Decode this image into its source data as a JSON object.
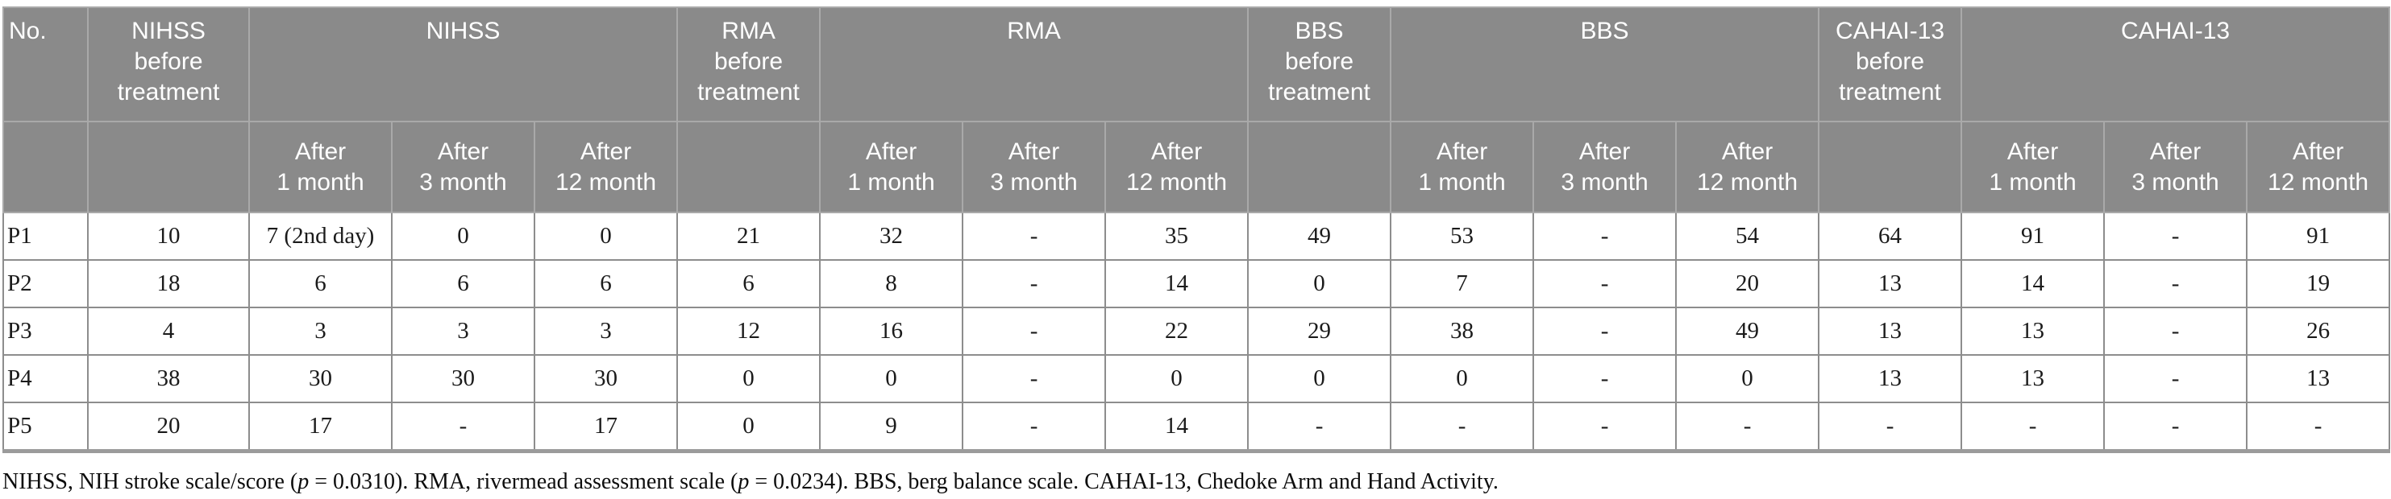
{
  "colors": {
    "header_background": "#8a8a8a",
    "header_gridlines": "#a9a9a9",
    "header_text": "#ffffff",
    "body_border": "#8d8d8d",
    "body_text": "#1b1b1b",
    "bottom_rule": "#9b9b9b"
  },
  "table": {
    "header_row1": [
      {
        "key": "no",
        "label": "No.",
        "colspan": 1
      },
      {
        "key": "nihss-before-treatment",
        "label": "NIHSS\nbefore\ntreatment",
        "colspan": 1
      },
      {
        "key": "nihss-group",
        "label": "NIHSS",
        "colspan": 3
      },
      {
        "key": "rma-before-treatment",
        "label": "RMA\nbefore\ntreatment",
        "colspan": 1
      },
      {
        "key": "rma-group",
        "label": "RMA",
        "colspan": 3
      },
      {
        "key": "bbs-before-treatment",
        "label": "BBS\nbefore\ntreatment",
        "colspan": 1
      },
      {
        "key": "bbs-group",
        "label": "BBS",
        "colspan": 3
      },
      {
        "key": "cahai-13-before-treatment",
        "label": "CAHAI-13\nbefore\ntreatment",
        "colspan": 1
      },
      {
        "key": "cahai-13-group",
        "label": "CAHAI-13",
        "colspan": 3
      }
    ],
    "header_row2": [
      "",
      "",
      "After\n1 month",
      "After\n3 month",
      "After\n12 month",
      "",
      "After\n1 month",
      "After\n3 month",
      "After\n12 month",
      "",
      "After\n1 month",
      "After\n3 month",
      "After\n12 month",
      "",
      "After\n1 month",
      "After\n3 month",
      "After\n12 month"
    ],
    "rows": [
      {
        "cells": [
          "P1",
          "10",
          "7 (2nd day)",
          "0",
          "0",
          "21",
          "32",
          "-",
          "35",
          "49",
          "53",
          "-",
          "54",
          "64",
          "91",
          "-",
          "91"
        ]
      },
      {
        "cells": [
          "P2",
          "18",
          "6",
          "6",
          "6",
          "6",
          "8",
          "-",
          "14",
          "0",
          "7",
          "-",
          "20",
          "13",
          "14",
          "-",
          "19"
        ]
      },
      {
        "cells": [
          "P3",
          "4",
          "3",
          "3",
          "3",
          "12",
          "16",
          "-",
          "22",
          "29",
          "38",
          "-",
          "49",
          "13",
          "13",
          "-",
          "26"
        ]
      },
      {
        "cells": [
          "P4",
          "38",
          "30",
          "30",
          "30",
          "0",
          "0",
          "-",
          "0",
          "0",
          "0",
          "-",
          "0",
          "13",
          "13",
          "-",
          "13"
        ]
      },
      {
        "cells": [
          "P5",
          "20",
          "17",
          "-",
          "17",
          "0",
          "9",
          "-",
          "14",
          "-",
          "-",
          "-",
          "-",
          "-",
          "-",
          "-",
          "-"
        ]
      }
    ]
  },
  "footnote": {
    "seg1": "NIHSS, NIH stroke scale/score (",
    "p_label1": "p",
    "seg2": " = 0.0310). RMA, rivermead assessment scale (",
    "p_label2": "p",
    "seg3": " = 0.0234). BBS, berg balance scale. CAHAI-13, Chedoke Arm and Hand Activity."
  }
}
